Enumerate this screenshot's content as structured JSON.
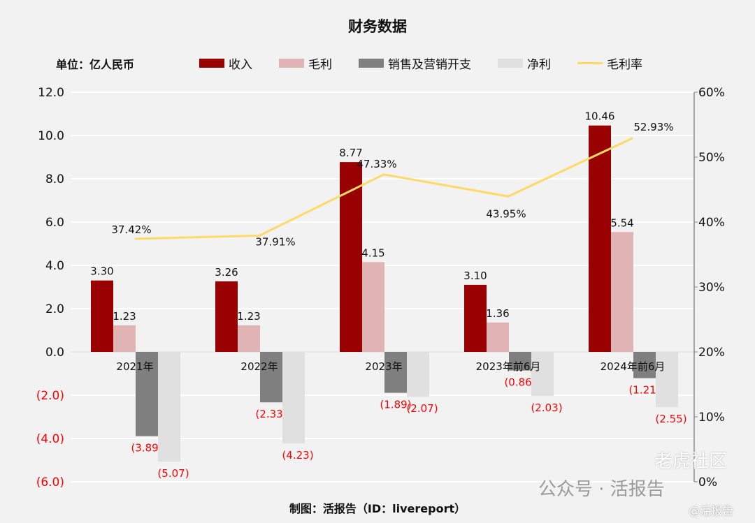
{
  "chart_data": {
    "type": "bar",
    "title": "财务数据",
    "unit_label": "单位：亿人民币",
    "categories": [
      "2021年",
      "2022年",
      "2023年",
      "2023年前6月",
      "2024年前6月"
    ],
    "series": [
      {
        "name": "收入",
        "type": "bar",
        "color": "#990000",
        "values": [
          3.3,
          3.26,
          8.77,
          3.1,
          10.46
        ],
        "labels": [
          "3.30",
          "3.26",
          "8.77",
          "3.10",
          "10.46"
        ]
      },
      {
        "name": "毛利",
        "type": "bar",
        "color": "#e0b4b4",
        "values": [
          1.23,
          1.23,
          4.15,
          1.36,
          5.54
        ],
        "labels": [
          "1.23",
          "1.23",
          "4.15",
          "1.36",
          "5.54"
        ]
      },
      {
        "name": "销售及营销开支",
        "type": "bar",
        "color": "#7f7f7f",
        "values": [
          -3.89,
          -2.33,
          -1.89,
          -0.86,
          -1.21
        ],
        "labels": [
          "(3.89)",
          "(2.33)",
          "(1.89)",
          "(0.86)",
          "(1.21)"
        ]
      },
      {
        "name": "净利",
        "type": "bar",
        "color": "#e0e0e0",
        "values": [
          -5.07,
          -4.23,
          -2.07,
          -2.03,
          -2.55
        ],
        "labels": [
          "(5.07)",
          "(4.23)",
          "(2.07)",
          "(2.03)",
          "(2.55)"
        ]
      },
      {
        "name": "毛利率",
        "type": "line",
        "axis": "right",
        "color": "#ffd966",
        "values": [
          37.42,
          37.91,
          47.33,
          43.95,
          52.93
        ],
        "labels": [
          "37.42%",
          "37.91%",
          "47.33%",
          "43.95%",
          "52.93%"
        ]
      }
    ],
    "ylim": [
      -6,
      12
    ],
    "yticks": [
      {
        "v": 12,
        "t": "12.0"
      },
      {
        "v": 10,
        "t": "10.0"
      },
      {
        "v": 8,
        "t": "8.0"
      },
      {
        "v": 6,
        "t": "6.0"
      },
      {
        "v": 4,
        "t": "4.0"
      },
      {
        "v": 2,
        "t": "2.0"
      },
      {
        "v": 0,
        "t": "0.0"
      },
      {
        "v": -2,
        "t": "(2.0)"
      },
      {
        "v": -4,
        "t": "(4.0)"
      },
      {
        "v": -6,
        "t": "(6.0)"
      }
    ],
    "y2lim": [
      0,
      60
    ],
    "y2ticks": [
      "0%",
      "10%",
      "20%",
      "30%",
      "40%",
      "50%",
      "60%"
    ],
    "negative_color": "#ff0000",
    "grid": true,
    "legend": "top"
  },
  "footer": "制图：活报告（ID：livereport）",
  "watermark": {
    "main": "公众号 · 活报告",
    "sub": "@活报告",
    "corner": "老虎社区"
  }
}
